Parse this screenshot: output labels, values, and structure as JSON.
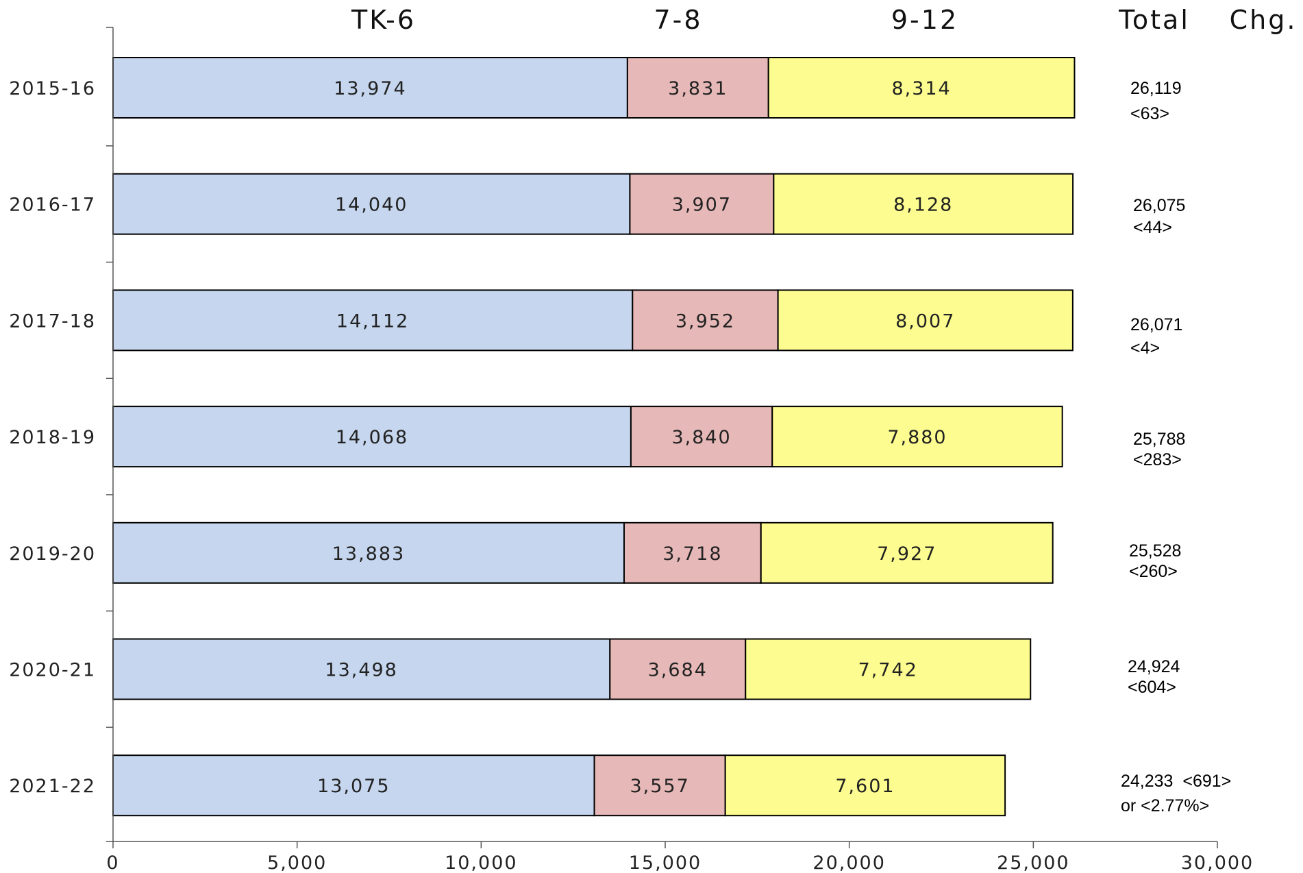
{
  "chart_data": {
    "type": "bar",
    "orientation": "horizontal",
    "stacked": true,
    "categories": [
      "2015-16",
      "2016-17",
      "2017-18",
      "2018-19",
      "2019-20",
      "2020-21",
      "2021-22"
    ],
    "series": [
      {
        "name": "TK-6",
        "color": "#c5d6ee",
        "values": [
          13974,
          14040,
          14112,
          14068,
          13883,
          13498,
          13075
        ],
        "labels": [
          "13,974",
          "14,040",
          "14,112",
          "14,068",
          "13,883",
          "13,498",
          "13,075"
        ]
      },
      {
        "name": "7-8",
        "color": "#e6b8b7",
        "values": [
          3831,
          3907,
          3952,
          3840,
          3718,
          3684,
          3557
        ],
        "labels": [
          "3,831",
          "3,907",
          "3,952",
          "3,840",
          "3,718",
          "3,684",
          "3,557"
        ]
      },
      {
        "name": "9-12",
        "color": "#fcfc90",
        "values": [
          8314,
          8128,
          8007,
          7880,
          7927,
          7742,
          7601
        ],
        "labels": [
          "8,314",
          "8,128",
          "8,007",
          "7,880",
          "7,927",
          "7,742",
          "7,601"
        ]
      }
    ],
    "column_headers": {
      "total": "Total",
      "change": "Chg."
    },
    "totals": [
      {
        "line1": "26,119",
        "line2": "<63>"
      },
      {
        "line1": "26,075",
        "line2": "<44>"
      },
      {
        "line1": "26,071",
        "line2": "<4>"
      },
      {
        "line1": "25,788",
        "line2": "<283>"
      },
      {
        "line1": "25,528",
        "line2": "<260>"
      },
      {
        "line1": "24,924",
        "line2": "<604>"
      },
      {
        "line1": "24,233  <691>",
        "line2": "or <2.77%>"
      }
    ],
    "xlim": [
      0,
      30000
    ],
    "xticks": [
      0,
      5000,
      10000,
      15000,
      20000,
      25000,
      30000
    ],
    "xtick_labels": [
      "0",
      "5,000",
      "10,000",
      "15,000",
      "20,000",
      "25,000",
      "30,000"
    ],
    "grid": false,
    "legend": "column headers above bars"
  }
}
